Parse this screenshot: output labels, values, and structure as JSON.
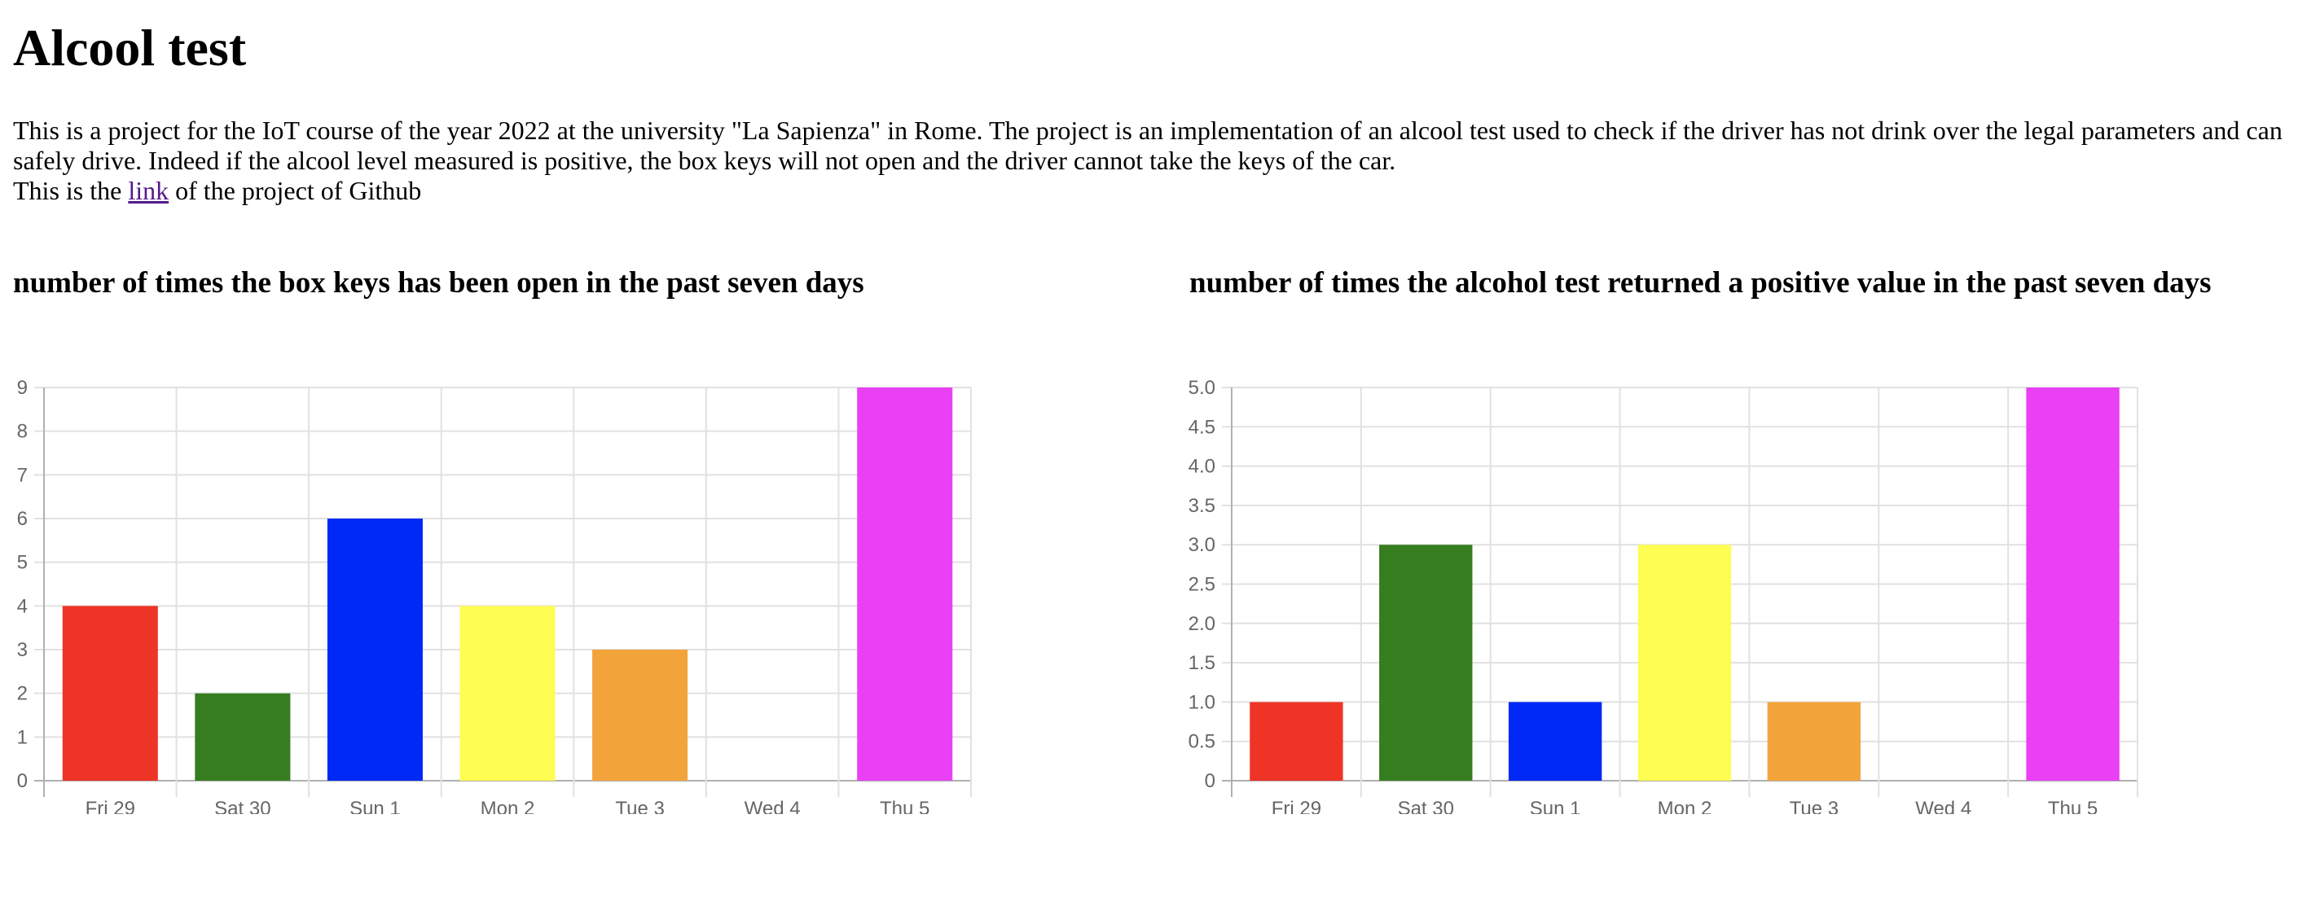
{
  "page": {
    "title": "Alcool test",
    "intro_line1": "This is a project for the IoT course of the year 2022 at the university \"La Sapienza\" in Rome. The project is an implementation of an alcool test used to check if the driver has not drink over the legal parameters and can safely drive. Indeed if the alcool level measured is positive, the box keys will not open and the driver cannot take the keys of the car.",
    "intro_line2_before": "This is the ",
    "intro_link_text": "link",
    "intro_line2_after": " of the project of Github"
  },
  "chart_data": [
    {
      "type": "bar",
      "title": "number of times the box keys has been open in the past seven days",
      "xlabel": "",
      "ylabel": "",
      "categories": [
        "Fri 29",
        "Sat 30",
        "Sun 1",
        "Mon 2",
        "Tue 3",
        "Wed 4",
        "Thu 5"
      ],
      "values": [
        4,
        2,
        6,
        4,
        3,
        0,
        9
      ],
      "colors": [
        "#ee3427",
        "#367d20",
        "#0029f5",
        "#fefd52",
        "#f2a43b",
        "#7e7e7e",
        "#e940f4"
      ],
      "ylim": [
        0,
        9
      ],
      "yticks": [
        "0",
        "1",
        "2",
        "3",
        "4",
        "5",
        "6",
        "7",
        "8",
        "9"
      ],
      "grid": true,
      "legend": "none"
    },
    {
      "type": "bar",
      "title": "number of times the alcohol test returned a positive value in the past seven days",
      "xlabel": "",
      "ylabel": "",
      "categories": [
        "Fri 29",
        "Sat 30",
        "Sun 1",
        "Mon 2",
        "Tue 3",
        "Wed 4",
        "Thu 5"
      ],
      "values": [
        1,
        3,
        1,
        3,
        1,
        0,
        5
      ],
      "colors": [
        "#ee3427",
        "#367d20",
        "#0029f5",
        "#fefd52",
        "#f2a43b",
        "#7e7e7e",
        "#e940f4"
      ],
      "ylim": [
        0,
        5
      ],
      "yticks": [
        "0",
        "0.5",
        "1.0",
        "1.5",
        "2.0",
        "2.5",
        "3.0",
        "3.5",
        "4.0",
        "4.5",
        "5.0"
      ],
      "grid": true,
      "legend": "none"
    }
  ]
}
